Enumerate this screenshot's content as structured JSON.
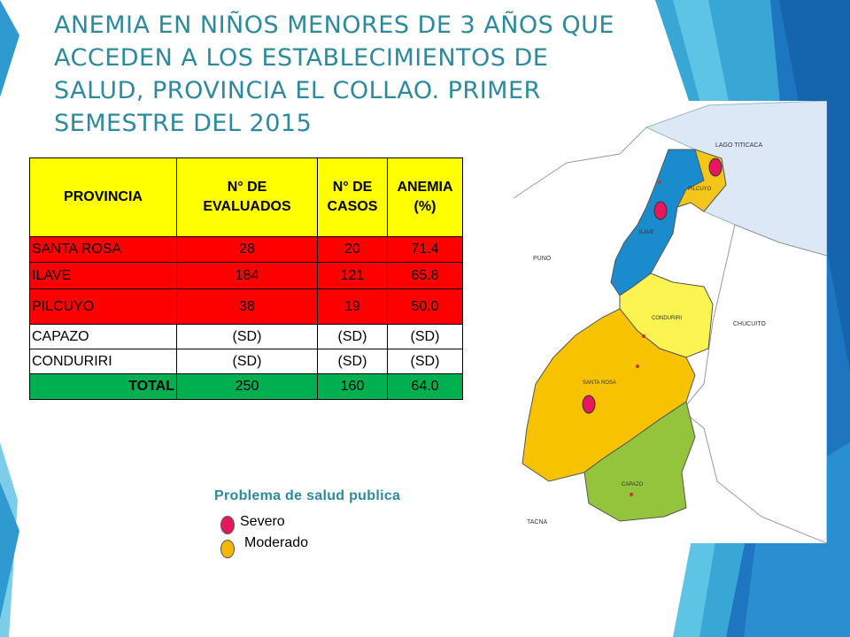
{
  "title_lines": [
    "ANEMIA EN NIÑOS MENORES DE 3 AÑOS QUE",
    "ACCEDEN A LOS ESTABLECIMIENTOS DE",
    "SALUD, PROVINCIA EL COLLAO. PRIMER",
    "SEMESTRE DEL 2015"
  ],
  "table": {
    "headers": {
      "provincia": "PROVINCIA",
      "evaluados_1": "N° DE",
      "evaluados_2": "EVALUADOS",
      "casos_1": "N° DE",
      "casos_2": "CASOS",
      "anemia_1": "ANEMIA",
      "anemia_2": "(%)"
    },
    "rows": [
      {
        "provincia": "SANTA ROSA",
        "evaluados": "28",
        "casos": "20",
        "anemia": "71.4"
      },
      {
        "provincia": "ILAVE",
        "evaluados": "184",
        "casos": "121",
        "anemia": "65.8"
      },
      {
        "provincia": "PILCUYO",
        "evaluados": "38",
        "casos": "19",
        "anemia": "50.0"
      },
      {
        "provincia": "CAPAZO",
        "evaluados": "(SD)",
        "casos": "(SD)",
        "anemia": "(SD)"
      },
      {
        "provincia": "CONDURIRI",
        "evaluados": "(SD)",
        "casos": "(SD)",
        "anemia": "(SD)"
      }
    ],
    "total": {
      "label": "TOTAL",
      "evaluados": "250",
      "casos": "160",
      "anemia": "64.0"
    }
  },
  "map": {
    "labels": {
      "lago": "LAGO TITICACA",
      "pilcuyo": "PILCUYO",
      "ilave": "ILAVE",
      "puno": "PUNO",
      "conduriri": "CONDURIRI",
      "chucuito": "CHUCUITO",
      "santa_rosa": "SANTA ROSA",
      "capazo": "CAPAZO",
      "tacna": "TACNA"
    }
  },
  "legend": {
    "title": "Problema de salud publica",
    "severo": "Severo",
    "moderado": "Moderado"
  },
  "colors": {
    "title": "#2c8a9c",
    "severe": "#e8175d",
    "moderate": "#f5b800",
    "header": "#ffff00",
    "red_rows": "#ff0000",
    "total_row": "#00b050"
  }
}
